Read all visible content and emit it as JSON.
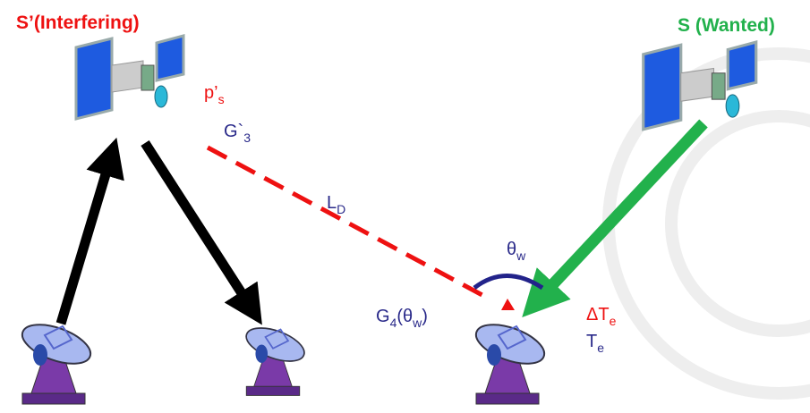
{
  "title_interfering": "S’(Interfering)",
  "title_wanted": "S (Wanted)",
  "labels": {
    "ps": [
      "p’",
      "s"
    ],
    "g3": [
      "G`",
      "3"
    ],
    "ld": [
      "L",
      "D"
    ],
    "theta": [
      "θ",
      "w"
    ],
    "g4": [
      "G",
      "4",
      "(θ",
      "w",
      ")"
    ],
    "dte": [
      "ΔT",
      "e"
    ],
    "te": [
      "T",
      "e"
    ]
  }
}
